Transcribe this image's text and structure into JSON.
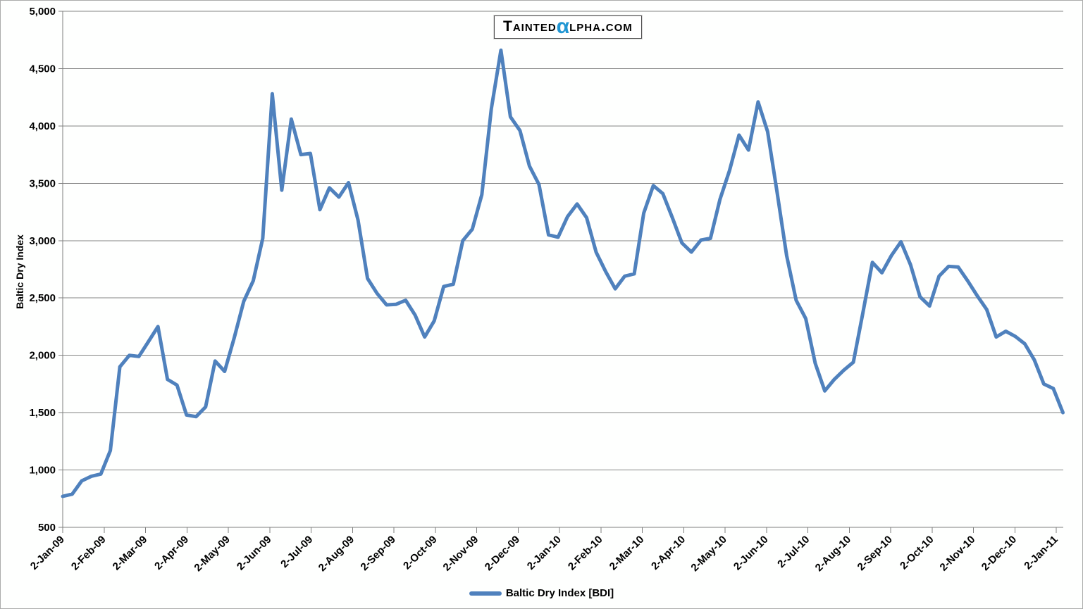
{
  "logo": {
    "part1": "Tainted",
    "alpha": "α",
    "part2": "lpha.com"
  },
  "legend": {
    "label": "Baltic Dry Index [BDI]"
  },
  "colors": {
    "line": "#4F81BD",
    "grid": "#848484",
    "axis": "#7f7f7f",
    "text": "#000000",
    "logo_alpha": "#2196D3",
    "background": "#fefffe"
  },
  "chart_data": {
    "type": "line",
    "title": "",
    "xlabel": "",
    "ylabel": "Baltic Dry Index",
    "ylim": [
      500,
      5000
    ],
    "y_tick_step": 500,
    "y_tick_labels": [
      "500",
      "1,000",
      "1,500",
      "2,000",
      "2,500",
      "3,000",
      "3,500",
      "4,000",
      "4,500",
      "5,000"
    ],
    "x_tick_labels": [
      "2-Jan-09",
      "2-Feb-09",
      "2-Mar-09",
      "2-Apr-09",
      "2-May-09",
      "2-Jun-09",
      "2-Jul-09",
      "2-Aug-09",
      "2-Sep-09",
      "2-Oct-09",
      "2-Nov-09",
      "2-Dec-09",
      "2-Jan-10",
      "2-Feb-10",
      "2-Mar-10",
      "2-Apr-10",
      "2-May-10",
      "2-Jun-10",
      "2-Jul-10",
      "2-Aug-10",
      "2-Sep-10",
      "2-Oct-10",
      "2-Nov-10",
      "2-Dec-10",
      "2-Jan-11"
    ],
    "grid": "horizontal",
    "legend_position": "bottom-center",
    "series": [
      {
        "name": "Baltic Dry Index [BDI]",
        "cadence": "weekly",
        "start": "2-Jan-09",
        "end": "7-Jan-11",
        "values": [
          770,
          790,
          905,
          945,
          965,
          1170,
          1900,
          2000,
          1990,
          2120,
          2250,
          1790,
          1740,
          1480,
          1465,
          1550,
          1950,
          1860,
          2150,
          2470,
          2650,
          3020,
          4280,
          3440,
          4060,
          3750,
          3760,
          3270,
          3460,
          3380,
          3505,
          3180,
          2670,
          2540,
          2440,
          2445,
          2480,
          2350,
          2160,
          2300,
          2600,
          2620,
          3000,
          3100,
          3400,
          4150,
          4660,
          4080,
          3960,
          3650,
          3490,
          3050,
          3030,
          3210,
          3320,
          3200,
          2900,
          2730,
          2580,
          2690,
          2710,
          3240,
          3480,
          3410,
          3200,
          2980,
          2900,
          3005,
          3020,
          3360,
          3610,
          3920,
          3790,
          4210,
          3950,
          3420,
          2870,
          2480,
          2320,
          1930,
          1690,
          1790,
          1870,
          1940,
          2370,
          2810,
          2720,
          2870,
          2990,
          2790,
          2510,
          2430,
          2690,
          2775,
          2770,
          2650,
          2520,
          2400,
          2160,
          2210,
          2165,
          2100,
          1960,
          1750,
          1710,
          1500
        ]
      }
    ]
  }
}
